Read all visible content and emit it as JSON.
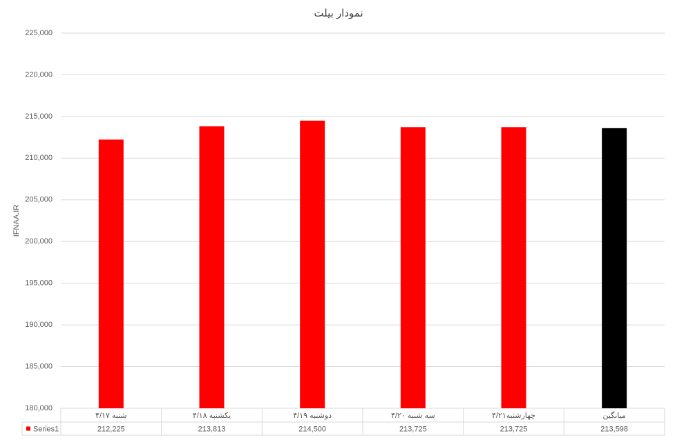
{
  "chart_data": {
    "type": "bar",
    "title": "نمودار بیلت",
    "y_label": "IFNAA.IR",
    "categories": [
      "شنبه ۴/۱۷",
      "یکشنبه ۴/۱۸",
      "دوشنبه ۴/۱۹",
      "سه شنبه ۴/۲۰",
      "چهارشنبه۴/۲۱",
      "میانگین"
    ],
    "series_name": "Series1",
    "legend_color": "#ff0000",
    "values": [
      212225,
      213813,
      214500,
      213725,
      213725,
      213598
    ],
    "value_labels": [
      "212,225",
      "213,813",
      "214,500",
      "213,725",
      "213,725",
      "213,598"
    ],
    "colors": [
      "#ff0000",
      "#ff0000",
      "#ff0000",
      "#ff0000",
      "#ff0000",
      "#000000"
    ],
    "ylim": [
      180000,
      225000
    ],
    "yticks": [
      {
        "value": 180000,
        "label": "180,000"
      },
      {
        "value": 185000,
        "label": "185,000"
      },
      {
        "value": 190000,
        "label": "190,000"
      },
      {
        "value": 195000,
        "label": "195,000"
      },
      {
        "value": 200000,
        "label": "200,000"
      },
      {
        "value": 205000,
        "label": "205,000"
      },
      {
        "value": 210000,
        "label": "210,000"
      },
      {
        "value": 215000,
        "label": "215,000"
      },
      {
        "value": 220000,
        "label": "220,000"
      },
      {
        "value": 225000,
        "label": "225,000"
      }
    ],
    "grid": true
  }
}
